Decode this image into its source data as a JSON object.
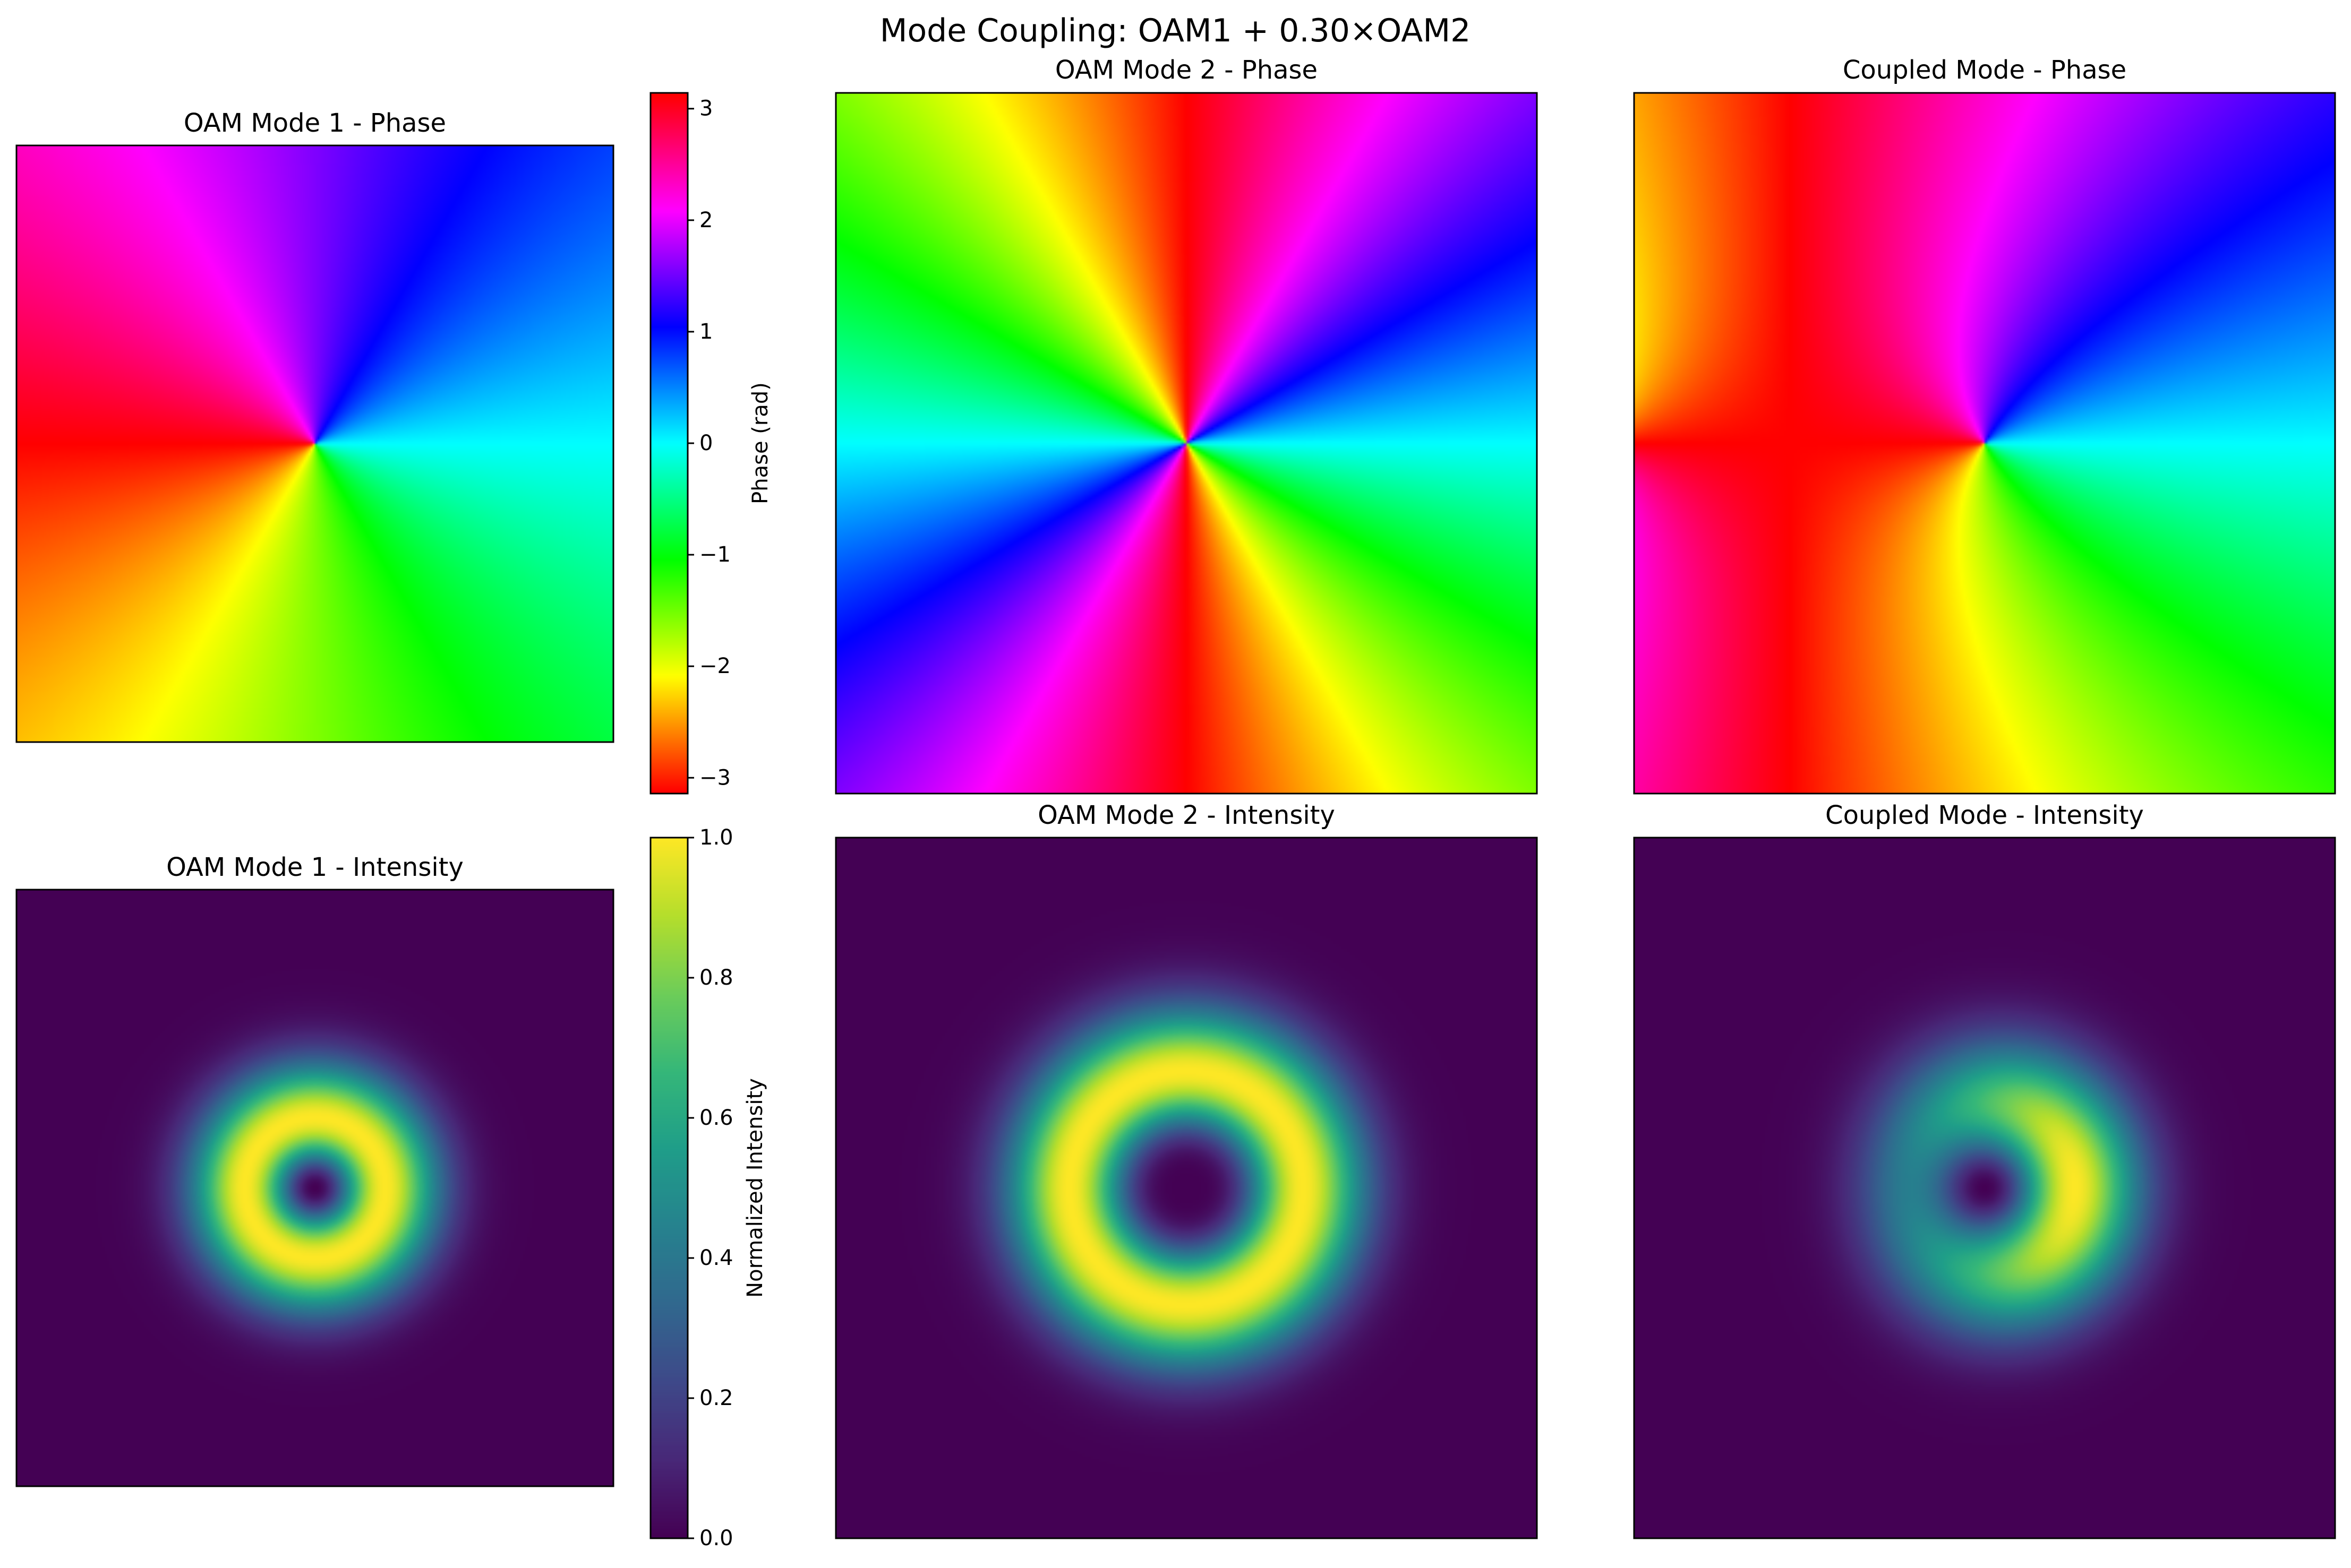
{
  "figure": {
    "title": "Mode Coupling: OAM1 + 0.30×OAM2"
  },
  "chart_data": [
    {
      "type": "heatmap",
      "panel": "oam1-phase",
      "title": "OAM Mode 1 - Phase",
      "quantity": "phase",
      "field": {
        "components": [
          {
            "l": 1,
            "amplitude": 1.0
          }
        ]
      },
      "colormap": "hsv",
      "color_range": [
        -3.14159,
        3.14159
      ],
      "axes_visible": false,
      "colorbar": {
        "label": "Phase (rad)",
        "range": [
          -3.14159,
          3.14159
        ],
        "ticks": [
          -3,
          -2,
          -1,
          0,
          1,
          2,
          3
        ],
        "tick_labels": [
          "−3",
          "−2",
          "−1",
          "0",
          "1",
          "2",
          "3"
        ]
      }
    },
    {
      "type": "heatmap",
      "panel": "oam2-phase",
      "title": "OAM Mode 2 - Phase",
      "quantity": "phase",
      "field": {
        "components": [
          {
            "l": 2,
            "amplitude": 1.0
          }
        ]
      },
      "colormap": "hsv",
      "color_range": [
        -3.14159,
        3.14159
      ],
      "axes_visible": false
    },
    {
      "type": "heatmap",
      "panel": "coupled-phase",
      "title": "Coupled Mode - Phase",
      "quantity": "phase",
      "field": {
        "components": [
          {
            "l": 1,
            "amplitude": 1.0
          },
          {
            "l": 2,
            "amplitude": 0.3
          }
        ]
      },
      "colormap": "hsv",
      "color_range": [
        -3.14159,
        3.14159
      ],
      "axes_visible": false
    },
    {
      "type": "heatmap",
      "panel": "oam1-intensity",
      "title": "OAM Mode 1 - Intensity",
      "quantity": "normalized intensity",
      "field": {
        "components": [
          {
            "l": 1,
            "amplitude": 1.0
          }
        ]
      },
      "colormap": "viridis",
      "color_range": [
        0,
        1
      ],
      "axes_visible": false,
      "colorbar": {
        "label": "Normalized Intensity",
        "range": [
          0,
          1
        ],
        "ticks": [
          0,
          0.2,
          0.4,
          0.6,
          0.8,
          1
        ],
        "tick_labels": [
          "0.0",
          "0.2",
          "0.4",
          "0.6",
          "0.8",
          "1.0"
        ]
      }
    },
    {
      "type": "heatmap",
      "panel": "oam2-intensity",
      "title": "OAM Mode 2 - Intensity",
      "quantity": "normalized intensity",
      "field": {
        "components": [
          {
            "l": 2,
            "amplitude": 1.0
          }
        ]
      },
      "colormap": "viridis",
      "color_range": [
        0,
        1
      ],
      "axes_visible": false
    },
    {
      "type": "heatmap",
      "panel": "coupled-intensity",
      "title": "Coupled Mode - Intensity",
      "quantity": "normalized intensity",
      "field": {
        "components": [
          {
            "l": 1,
            "amplitude": 1.0
          },
          {
            "l": 2,
            "amplitude": 0.3
          }
        ]
      },
      "colormap": "viridis",
      "color_range": [
        0,
        1
      ],
      "axes_visible": false
    }
  ]
}
